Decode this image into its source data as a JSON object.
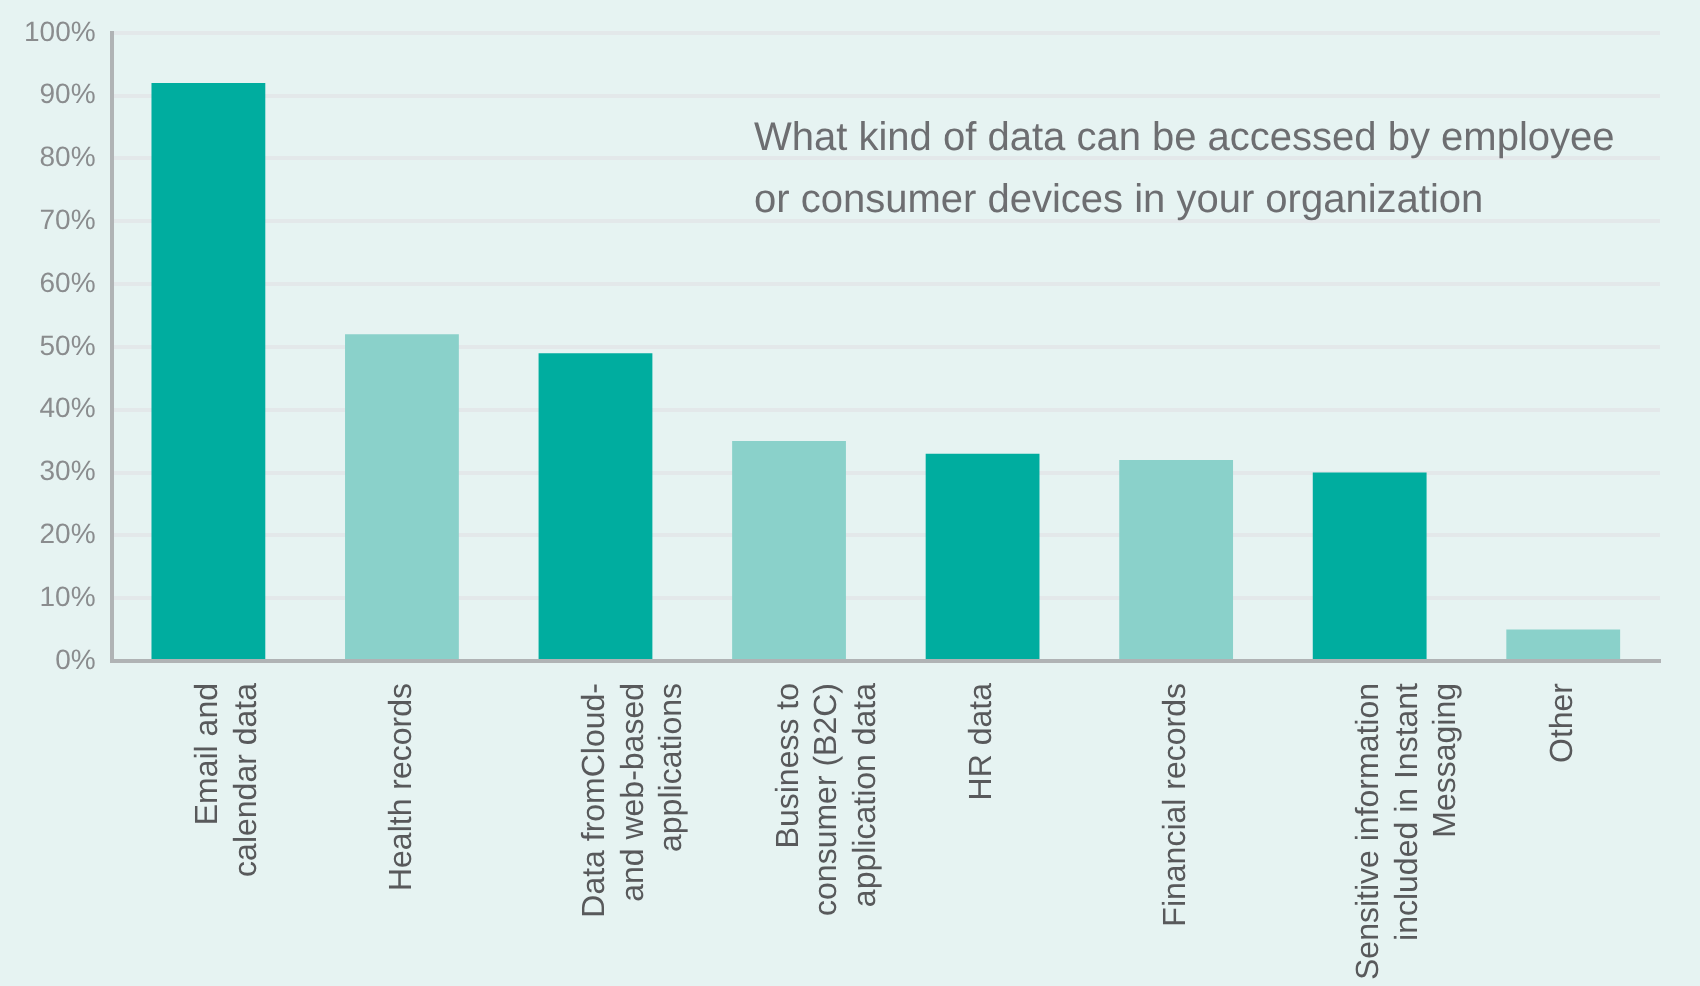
{
  "chart_data": {
    "type": "bar",
    "title": "What kind of data can be accessed by employee or consumer devices in your organization",
    "categories": [
      "Email and\ncalendar data",
      "Health records",
      "Data fromCloud-\nand web-based\napplications",
      "Business to\nconsumer (B2C)\napplication data",
      "HR data",
      "Financial records",
      "Sensitive information\nincluded in Instant\nMessaging",
      "Other"
    ],
    "values": [
      92,
      52,
      49,
      35,
      33,
      32,
      30,
      5
    ],
    "colors": [
      "#00ad9f",
      "#8ad1ca",
      "#00ad9f",
      "#8ad1ca",
      "#00ad9f",
      "#8ad1ca",
      "#00ad9f",
      "#8ad1ca"
    ],
    "ylim": [
      0,
      100
    ],
    "yticks": [
      {
        "value": 0,
        "label": "0%"
      },
      {
        "value": 10,
        "label": "10%"
      },
      {
        "value": 20,
        "label": "20%"
      },
      {
        "value": 30,
        "label": "30%"
      },
      {
        "value": 40,
        "label": "40%"
      },
      {
        "value": 50,
        "label": "50%"
      },
      {
        "value": 60,
        "label": "60%"
      },
      {
        "value": 70,
        "label": "70%"
      },
      {
        "value": 80,
        "label": "80%"
      },
      {
        "value": 90,
        "label": "90%"
      },
      {
        "value": 100,
        "label": "100%"
      }
    ],
    "grid": "y",
    "legend": false
  }
}
